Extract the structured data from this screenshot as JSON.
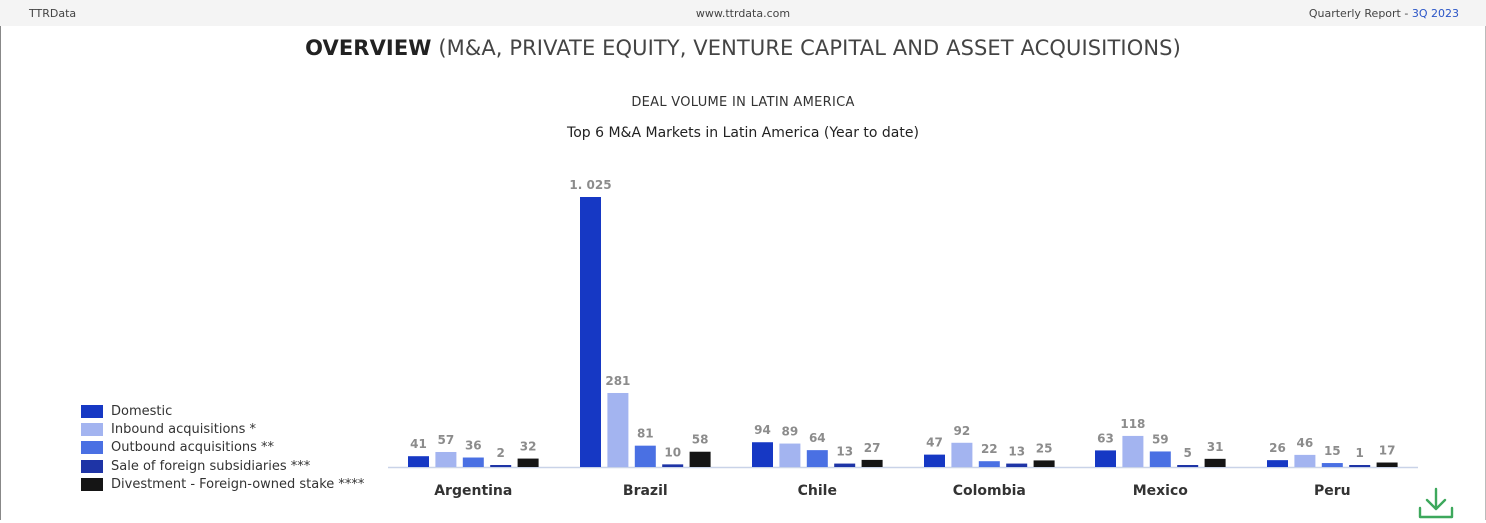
{
  "topbar": {
    "left": "TTRData",
    "center": "www.ttrdata.com",
    "right_prefix": "Quarterly Report - ",
    "right_accent": "3Q 2023"
  },
  "page_title": {
    "bold": "OVERVIEW",
    "rest": " (M&A, PRIVATE EQUITY, VENTURE CAPITAL AND ASSET ACQUISITIONS)"
  },
  "icons": {
    "download": "download-icon"
  },
  "colors": {
    "accent": "#2a55c7",
    "download": "#3da85c"
  },
  "chart_data": {
    "type": "bar",
    "title": "DEAL VOLUME IN LATIN AMERICA",
    "subtitle": "Top 6 M&A Markets in Latin America (Year to date)",
    "categories": [
      "Argentina",
      "Brazil",
      "Chile",
      "Colombia",
      "Mexico",
      "Peru"
    ],
    "series": [
      {
        "name": "Domestic",
        "color": "#1638c4",
        "values": [
          41,
          1025,
          94,
          47,
          63,
          26
        ],
        "labels": [
          "41",
          "1. 025",
          "94",
          "47",
          "63",
          "26"
        ]
      },
      {
        "name": "Inbound acquisitions *",
        "color": "#a3b4f0",
        "values": [
          57,
          281,
          89,
          92,
          118,
          46
        ],
        "labels": [
          "57",
          "281",
          "89",
          "92",
          "118",
          "46"
        ]
      },
      {
        "name": "Outbound acquisitions **",
        "color": "#4a70e3",
        "values": [
          36,
          81,
          64,
          22,
          59,
          15
        ],
        "labels": [
          "36",
          "81",
          "64",
          "22",
          "59",
          "15"
        ]
      },
      {
        "name": "Sale of foreign subsidiaries ***",
        "color": "#1e34a6",
        "values": [
          2,
          10,
          13,
          13,
          5,
          1
        ],
        "labels": [
          "2",
          "10",
          "13",
          "13",
          "5",
          "1"
        ]
      },
      {
        "name": "Divestment - Foreign-owned stake ****",
        "color": "#151515",
        "values": [
          32,
          58,
          27,
          25,
          31,
          17
        ],
        "labels": [
          "32",
          "58",
          "27",
          "25",
          "31",
          "17"
        ]
      }
    ],
    "ylim": [
      0,
      1025
    ],
    "grid": false,
    "legend_position": "left"
  }
}
